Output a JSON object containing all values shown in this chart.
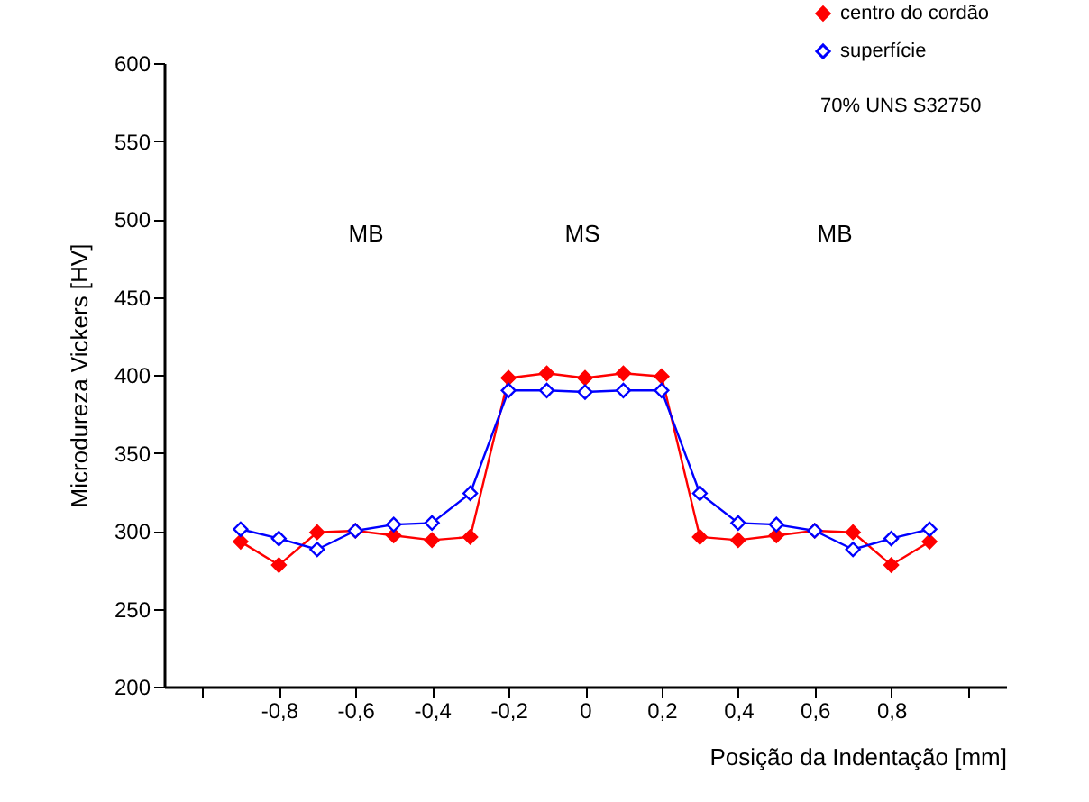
{
  "chart_data": {
    "type": "line",
    "xlabel": "Posição da Indentação [mm]",
    "ylabel": "Microdureza Vickers [HV]",
    "x": [
      -0.9,
      -0.8,
      -0.7,
      -0.6,
      -0.5,
      -0.4,
      -0.3,
      -0.2,
      -0.1,
      0,
      0.1,
      0.2,
      0.3,
      0.4,
      0.5,
      0.6,
      0.7,
      0.8,
      0.9
    ],
    "series": [
      {
        "name": "centro do cordão",
        "color": "#ff0000",
        "values": [
          293,
          278,
          299,
          300,
          297,
          294,
          296,
          398,
          401,
          398,
          401,
          399,
          296,
          294,
          297,
          300,
          299,
          278,
          293
        ]
      },
      {
        "name": "superfície",
        "color": "#0000ff",
        "values": [
          301,
          295,
          288,
          300,
          304,
          305,
          324,
          390,
          390,
          389,
          390,
          390,
          324,
          305,
          304,
          300,
          288,
          295,
          301
        ]
      }
    ],
    "xlim": [
      -1.1,
      1.1
    ],
    "xticks": [
      {
        "value": -1,
        "label": null
      },
      {
        "value": -0.8,
        "label": "-0,8"
      },
      {
        "value": -0.6,
        "label": "-0,6"
      },
      {
        "value": -0.4,
        "label": "-0,4"
      },
      {
        "value": -0.2,
        "label": "-0,2"
      },
      0,
      {
        "value": 0.2,
        "label": "0,2"
      },
      {
        "value": 0.4,
        "label": "0,4"
      },
      {
        "value": 0.6,
        "label": "0,6"
      },
      {
        "value": 0.8,
        "label": "0,8"
      },
      {
        "value": 1,
        "label": null
      }
    ],
    "ylim": [
      200,
      600
    ],
    "yticks": [
      200,
      250,
      300,
      350,
      400,
      450,
      500,
      550,
      600
    ],
    "annotations": [
      "MB",
      "MS",
      "MB",
      "70%   UNS S32750"
    ],
    "marker": "diamond",
    "line_style": "solid",
    "grid": false,
    "legend": "top right"
  }
}
